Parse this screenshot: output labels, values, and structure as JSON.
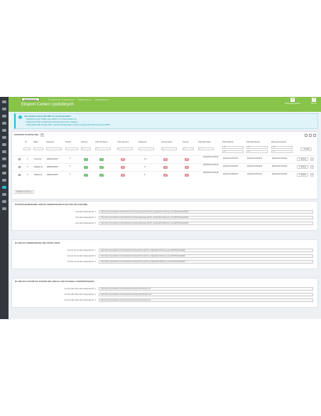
{
  "header": {
    "shop_selector": "EMR ESHOP",
    "crumbs": [
      "Konfiguracja i Produkty Xml",
      "Tabela Ceneo",
      "Import/eksport"
    ],
    "title": "Eksport Ceneo i podobnych",
    "buttons": [
      {
        "label": "Dodaj nowy eksport",
        "icon": "plus-icon"
      },
      {
        "label": "Pomoc",
        "icon": "help-icon"
      }
    ]
  },
  "alert": {
    "title": "Jak wygenerować plik XML do porównywarki?",
    "lines": [
      "• Wyeksportuj plik \"Dodaj nowy eksport\" do porównywarek cen",
      "• Skopiuj link XML do właściwej porównywarki (Ceneo, Skąpiec)",
      "• Podaj adres URL do pliku XML w panelu porównywarki; możesz też generować plik za pomocą CRON"
    ]
  },
  "list_panel": {
    "title": "Eksport plików XML",
    "count": "3",
    "columns": [
      "ID",
      "Sklep",
      "Kategoria",
      "Nazwa",
      "Aktywny",
      "Tylko dostępne",
      "Tylko aktywne",
      "Kategoria",
      "Generowanie",
      "Gotowy",
      "Zaktualizowany",
      "Data dodania",
      "Data aktualizacji",
      "Data generowania"
    ],
    "filters": {
      "search_label": "Szukaj",
      "from": "Od",
      "to": "Do"
    },
    "rows": [
      {
        "id": "1",
        "shop": "Ceneo.pl",
        "category": "EMR ESHOP",
        "active": true,
        "only_available": true,
        "only_active": false,
        "category_count": "14",
        "generated": false,
        "ready": false,
        "updated": "2019-06-20 10:54:02",
        "added": "2019-06-20 09:52:34",
        "modified": "2019-06-20 09:56:37",
        "gen": "0000-00-00 00:00:00"
      },
      {
        "id": "2",
        "shop": "Skapiec.pl",
        "category": "EMR ESHOP",
        "active": true,
        "only_available": true,
        "only_active": false,
        "category_count": "9",
        "generated": false,
        "ready": false,
        "updated": "2019-06-20 10:54:16",
        "added": "2019-06-20 09:52:53",
        "modified": "2019-06-20 09:56:50",
        "gen": "0000-00-00 00:00:00"
      },
      {
        "id": "3",
        "shop": "Nokaut.pl",
        "category": "EMR ESHOP",
        "active": true,
        "only_available": true,
        "only_active": false,
        "category_count": "6",
        "generated": false,
        "ready": false,
        "updated": "2019-06-20 10:54:28",
        "added": "2019-06-20 09:53:07",
        "modified": "2019-06-20 09:57:01",
        "gen": "0000-00-00 00:00:00"
      }
    ],
    "edit_label": "Edytuj",
    "bulk_label": "Działania masowe"
  },
  "sections": [
    {
      "title": "OPROGRAMOWANIE LINKI DO GENEROWANIA PLIKU XML (NA ŻĄDANIE)",
      "links": [
        {
          "label": "Link dla konfiguracji ID: 1",
          "url": "https://demo.prestashop.com/modules/emrsxmlexport/generate.php?id_configuration=1&secure_key=9d7f23e4b1a0c8a6"
        },
        {
          "label": "Link dla konfiguracji ID: 2",
          "url": "https://demo.prestashop.com/modules/emrsxmlexport/generate.php?id_configuration=2&secure_key=9d7f23e4b1a0c8a6"
        },
        {
          "label": "Link dla konfiguracji ID: 3",
          "url": "https://demo.prestashop.com/modules/emrsxmlexport/generate.php?id_configuration=3&secure_key=9d7f23e4b1a0c8a6"
        }
      ]
    },
    {
      "title": "LINKI DO GENEROWANIA XML PRZEZ CRON",
      "links": [
        {
          "label": "Link do Crona dla konfiguracji ID: 1",
          "url": "https://demo.prestashop.com/modules/emrsxmlexport/cron.php?id_configuration=1&secure_key=9d7f23e4b1a0c8a6"
        },
        {
          "label": "Link do Crona dla konfiguracji ID: 2",
          "url": "https://demo.prestashop.com/modules/emrsxmlexport/cron.php?id_configuration=2&secure_key=9d7f23e4b1a0c8a6"
        },
        {
          "label": "Link do Crona dla konfiguracji ID: 3",
          "url": "https://demo.prestashop.com/modules/emrsxmlexport/cron.php?id_configuration=3&secure_key=9d7f23e4b1a0c8a6"
        }
      ]
    },
    {
      "title": "LINKI DO GOTOWYCH PLIKÓW XML (WKLEJ LINK W PANELU PORÓWNYWARKI)",
      "links": [
        {
          "label": "Link do pliku XML dla konfiguracji ID: 1",
          "url": "https://demo.prestashop.com/modules/emrsxmlexport/xml/ceneo.xml"
        },
        {
          "label": "Link do pliku XML dla konfiguracji ID: 2",
          "url": "https://demo.prestashop.com/modules/emrsxmlexport/xml/skapiec.xml"
        },
        {
          "label": "Link do pliku XML dla konfiguracji ID: 3",
          "url": "https://demo.prestashop.com/modules/emrsxmlexport/xml/nokaut.xml"
        }
      ]
    }
  ],
  "colors": {
    "header": "#88c34a",
    "sidebar": "#33383f",
    "accent": "#25b9d7",
    "on": "#72c279",
    "off": "#e08f95"
  }
}
